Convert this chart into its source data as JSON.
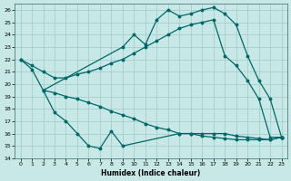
{
  "xlabel": "Humidex (Indice chaleur)",
  "xlim": [
    -0.5,
    23.5
  ],
  "ylim": [
    14,
    26.5
  ],
  "yticks": [
    14,
    15,
    16,
    17,
    18,
    19,
    20,
    21,
    22,
    23,
    24,
    25,
    26
  ],
  "xticks": [
    0,
    1,
    2,
    3,
    4,
    5,
    6,
    7,
    8,
    9,
    10,
    11,
    12,
    13,
    14,
    15,
    16,
    17,
    18,
    19,
    20,
    21,
    22,
    23
  ],
  "bg_color": "#c8e8e8",
  "grid_color": "#a0c8c8",
  "line_color": "#006868",
  "curve_top_jagged": {
    "x": [
      0,
      1,
      2,
      9,
      10,
      11,
      12,
      13,
      14,
      15,
      16,
      17,
      18,
      19,
      20,
      21,
      22,
      23
    ],
    "y": [
      22.0,
      21.2,
      19.5,
      23.0,
      24.0,
      23.2,
      25.2,
      26.0,
      25.5,
      25.7,
      26.0,
      26.2,
      25.7,
      24.8,
      22.3,
      20.3,
      18.8,
      15.7
    ]
  },
  "curve_top_smooth": {
    "x": [
      0,
      1,
      2,
      3,
      4,
      5,
      6,
      7,
      8,
      9,
      10,
      11,
      12,
      13,
      14,
      15,
      16,
      17,
      18,
      19,
      20,
      21,
      22,
      23
    ],
    "y": [
      22.0,
      21.5,
      21.0,
      20.5,
      20.5,
      20.8,
      21.0,
      21.3,
      21.7,
      22.0,
      22.5,
      23.0,
      23.5,
      24.0,
      24.5,
      24.8,
      25.0,
      25.2,
      22.3,
      21.5,
      20.3,
      18.8,
      15.7,
      15.7
    ]
  },
  "curve_bot_smooth": {
    "x": [
      2,
      3,
      4,
      5,
      6,
      7,
      8,
      9,
      10,
      11,
      12,
      13,
      14,
      15,
      16,
      17,
      18,
      19,
      20,
      21,
      22,
      23
    ],
    "y": [
      19.5,
      19.3,
      19.0,
      18.8,
      18.5,
      18.2,
      17.8,
      17.5,
      17.2,
      16.8,
      16.5,
      16.3,
      16.0,
      16.0,
      16.0,
      16.0,
      16.0,
      15.8,
      15.7,
      15.6,
      15.5,
      15.7
    ]
  },
  "curve_bot_jagged": {
    "x": [
      2,
      3,
      4,
      5,
      6,
      7,
      8,
      9,
      14,
      15,
      16,
      17,
      18,
      19,
      20,
      21,
      22,
      23
    ],
    "y": [
      19.5,
      17.7,
      17.0,
      16.0,
      15.0,
      14.8,
      16.2,
      15.0,
      16.0,
      16.0,
      15.8,
      15.7,
      15.6,
      15.5,
      15.5,
      15.5,
      15.5,
      15.7
    ]
  }
}
